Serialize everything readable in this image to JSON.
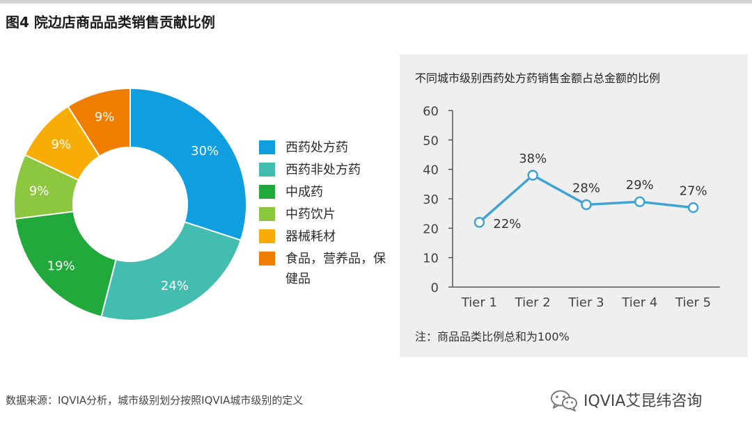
{
  "figure": {
    "title": "图4 院边店商品品类销售贡献比例"
  },
  "chart_data": [
    {
      "type": "pie",
      "variant": "donut",
      "categories": [
        "西药处方药",
        "西药非处方药",
        "中成药",
        "中药饮片",
        "器械耗材",
        "食品，营养品，保健品"
      ],
      "values": [
        30,
        24,
        19,
        9,
        9,
        9
      ],
      "data_labels": [
        "30%",
        "24%",
        "19%",
        "9%",
        "9%",
        "9%"
      ],
      "colors": [
        "#0f9ee0",
        "#43bdb0",
        "#21a93b",
        "#8dc63f",
        "#f7ac06",
        "#ef7d00"
      ],
      "legend": {
        "position": "right",
        "items": [
          "西药处方药",
          "西药非处方药",
          "中成药",
          "中药饮片",
          "器械耗材",
          "食品，营养品，保健品"
        ]
      }
    },
    {
      "type": "line",
      "title": "不同城市级别西药处方药销售金额占总金额的比例",
      "x": [
        "Tier 1",
        "Tier 2",
        "Tier 3",
        "Tier 4",
        "Tier 5"
      ],
      "series": [
        {
          "values": [
            22,
            38,
            28,
            29,
            27
          ],
          "data_labels": [
            "22%",
            "38%",
            "28%",
            "29%",
            "27%"
          ],
          "color": "#3fa3d6"
        }
      ],
      "ylim": [
        0,
        60
      ],
      "yticks": [
        "0",
        "10",
        "20",
        "30",
        "40",
        "50",
        "60"
      ],
      "grid": false,
      "footnote": "注：商品品类比例总和为100%"
    }
  ],
  "source": "数据来源：IQVIA分析，城市级别划分按照IQVIA城市级别的定义",
  "brand": {
    "name": "IQVIA艾昆纬咨询",
    "icon": "wechat-icon"
  }
}
